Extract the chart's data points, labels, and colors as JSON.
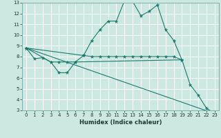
{
  "title": "",
  "xlabel": "Humidex (Indice chaleur)",
  "bg_color": "#cce8e0",
  "line_color": "#1a7a6e",
  "grid_color": "#ffffff",
  "xlim": [
    -0.5,
    23.5
  ],
  "ylim": [
    3,
    13
  ],
  "xticks": [
    0,
    1,
    2,
    3,
    4,
    5,
    6,
    7,
    8,
    9,
    10,
    11,
    12,
    13,
    14,
    15,
    16,
    17,
    18,
    19,
    20,
    21,
    22,
    23
  ],
  "yticks": [
    3,
    4,
    5,
    6,
    7,
    8,
    9,
    10,
    11,
    12,
    13
  ],
  "lines": [
    {
      "x": [
        0,
        1,
        2,
        3,
        4,
        5,
        6,
        7,
        8,
        9,
        10,
        11,
        12,
        13,
        14,
        15,
        16,
        17,
        18,
        19,
        20,
        21,
        22,
        23
      ],
      "y": [
        8.8,
        7.8,
        7.9,
        7.5,
        6.5,
        6.5,
        7.5,
        8.1,
        9.5,
        10.5,
        11.3,
        11.3,
        13.2,
        13.1,
        11.8,
        12.2,
        12.8,
        10.5,
        9.5,
        7.7,
        5.4,
        4.4,
        3.2,
        2.7
      ]
    },
    {
      "x": [
        0,
        3,
        4,
        5,
        6,
        19
      ],
      "y": [
        8.8,
        7.5,
        7.5,
        7.5,
        7.5,
        7.7
      ]
    },
    {
      "x": [
        0,
        7,
        8,
        9,
        10,
        11,
        12,
        13,
        14,
        15,
        16,
        17,
        18,
        19
      ],
      "y": [
        8.8,
        8.1,
        8.0,
        8.0,
        8.0,
        8.0,
        8.0,
        8.0,
        8.0,
        8.0,
        8.0,
        8.0,
        8.0,
        7.7
      ]
    },
    {
      "x": [
        0,
        23
      ],
      "y": [
        8.8,
        2.7
      ]
    }
  ]
}
